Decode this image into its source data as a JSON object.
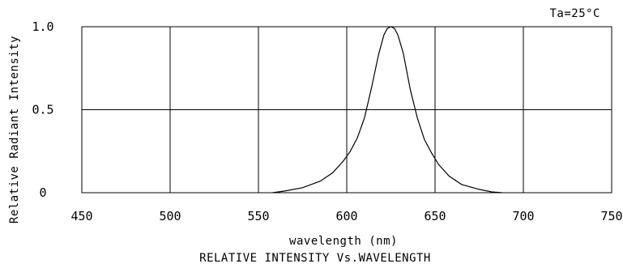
{
  "chart_data": {
    "type": "line",
    "title": "RELATIVE INTENSITY Vs.WAVELENGTH",
    "annotation": "Ta=25°C",
    "xlabel": "wavelength (nm)",
    "ylabel": "Relative Radiant Intensity",
    "xlim": [
      450,
      750
    ],
    "ylim": [
      0,
      1.0
    ],
    "x_ticks": [
      "450",
      "500",
      "550",
      "600",
      "650",
      "700",
      "750"
    ],
    "y_ticks": [
      "0",
      "0.5",
      "1.0"
    ],
    "grid": true,
    "series": [
      {
        "x": [
          558,
          565,
          575,
          585,
          592,
          598,
          602,
          606,
          610,
          614,
          618,
          621,
          623,
          625,
          627,
          629,
          632,
          636,
          640,
          644,
          648,
          652,
          658,
          665,
          675,
          682,
          688
        ],
        "values": [
          0.0,
          0.01,
          0.03,
          0.07,
          0.12,
          0.19,
          0.25,
          0.33,
          0.45,
          0.63,
          0.83,
          0.95,
          0.99,
          1.0,
          0.99,
          0.95,
          0.84,
          0.62,
          0.45,
          0.32,
          0.24,
          0.17,
          0.1,
          0.05,
          0.02,
          0.005,
          0.0
        ]
      }
    ]
  }
}
